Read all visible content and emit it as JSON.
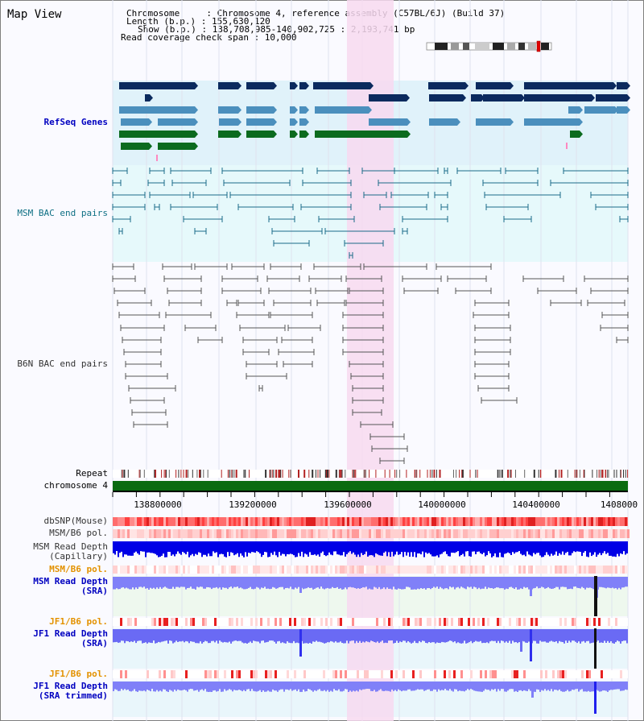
{
  "view_title": "Map View",
  "info": {
    "line1": "Chromosome     : Chromosome 4, reference assembly (C57BL/6J) (Build 37)",
    "line2": "Length (b.p.) : 155,630,120",
    "line3": "Show (b.p.) : 138,708,985-140,902,725 : 2,193,741 bp",
    "line4": "Read coverage check span : 10,000"
  },
  "tracks": {
    "refseq": "RefSeq Genes",
    "msm_bac": "MSM BAC end pairs",
    "b6n_bac": "B6N BAC end pairs",
    "repeat": "Repeat",
    "chromosome": "chromosome 4",
    "dbsnp": "dbSNP(Mouse)",
    "msm_b6_pol_1": "MSM/B6 pol.",
    "msm_depth_cap_1": "MSM Read Depth",
    "msm_depth_cap_2": "(Capillary)",
    "msm_b6_pol_2": "MSM/B6 pol.",
    "msm_depth_sra_1": "MSM Read Depth",
    "msm_depth_sra_2": "(SRA)",
    "jf1_b6_pol_1": "JF1/B6 pol.",
    "jf1_depth_sra_1": "JF1 Read Depth",
    "jf1_depth_sra_2": "(SRA)",
    "jf1_b6_pol_2": "JF1/B6 pol.",
    "jf1_depth_trim_1": "JF1 Read Depth",
    "jf1_depth_trim_2": "(SRA trimmed)"
  },
  "axis": {
    "ticks": [
      "138800000",
      "139200000",
      "139600000",
      "140000000",
      "140400000",
      "1408000"
    ]
  },
  "colors": {
    "refseq_bg": "#e0f2fa",
    "bac_bg": "#e6f9fb",
    "highlight": "#f7d9f0",
    "gene_dark": "#0b2a5e",
    "gene_mid": "#4b8fbd",
    "gene_green": "#0b6b1e",
    "chrom_green": "#0a6b10",
    "depth_blue": "#0000e6",
    "depth_light": "#8080f8"
  }
}
